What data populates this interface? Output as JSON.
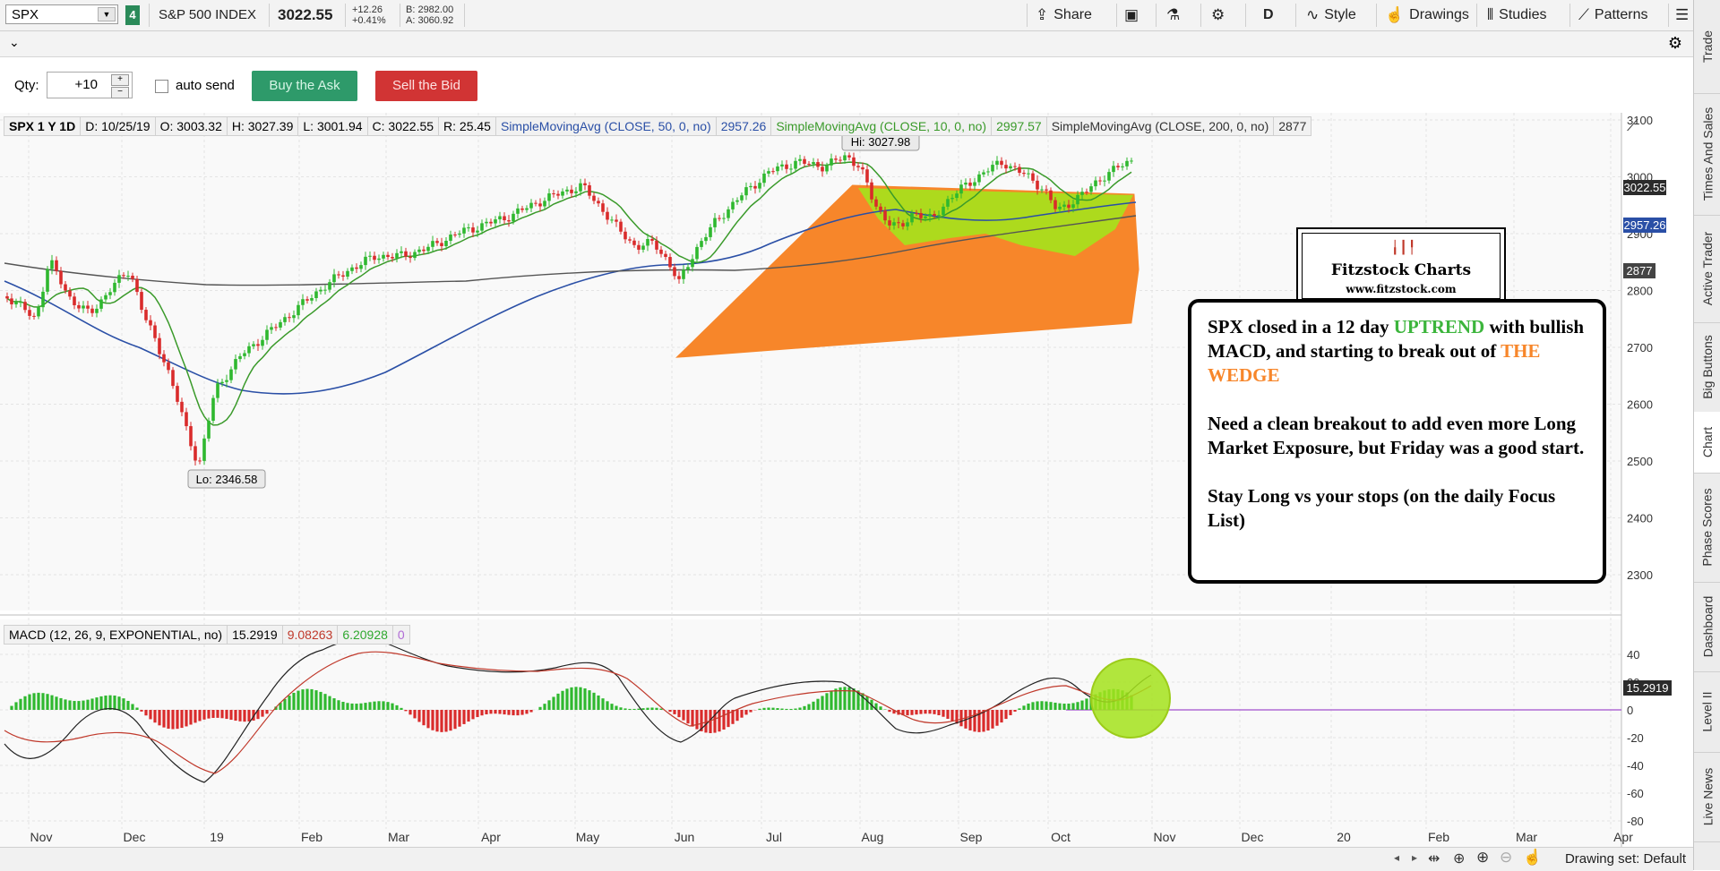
{
  "toolbar": {
    "symbol": "SPX",
    "link_badge": "4",
    "instrument_name": "S&P 500 INDEX",
    "last_price": "3022.55",
    "change_net": "+12.26",
    "change_pct": "+0.41%",
    "bid": "B: 2982.00",
    "ask": "A: 3060.92",
    "share_label": "Share",
    "aggregation": "D",
    "style_label": "Style",
    "drawings_label": "Drawings",
    "studies_label": "Studies",
    "patterns_label": "Patterns"
  },
  "trade": {
    "qty_label": "Qty:",
    "qty_value": "+10",
    "auto_send_label": "auto send",
    "buy_label": "Buy the Ask",
    "sell_label": "Sell the Bid"
  },
  "header": {
    "period": "SPX 1 Y 1D",
    "date": "D: 10/25/19",
    "open": "O: 3003.32",
    "high": "H: 3027.39",
    "low": "L: 3001.94",
    "close": "C: 3022.55",
    "range": "R: 25.45",
    "sma50_label": "SimpleMovingAvg (CLOSE, 50, 0, no)",
    "sma50_value": "2957.26",
    "sma10_label": "SimpleMovingAvg (CLOSE, 10, 0, no)",
    "sma10_value": "2997.57",
    "sma200_label": "SimpleMovingAvg (CLOSE, 200, 0, no)",
    "sma200_value": "2877"
  },
  "annotations": {
    "hi": "Hi: 3027.98",
    "lo": "Lo: 2346.58",
    "logo_title": "Fitzstock Charts",
    "logo_url": "www.fitzstock.com",
    "note_p1_a": "SPX closed in a 12 day ",
    "note_p1_b": "UPTREND",
    "note_p1_c": " with bullish MACD, and starting to break out of ",
    "note_p1_d": "THE WEDGE",
    "note_p2": "Need a clean breakout to add even more Long Market Exposure, but Friday was  a good start.",
    "note_p3": "Stay Long vs your stops (on the daily Focus List)"
  },
  "price_tags": {
    "last": "3022.55",
    "sma50": "2957.26",
    "sma200": "2877"
  },
  "price_axis": [
    "3100",
    "3000",
    "2900",
    "2800",
    "2700",
    "2600",
    "2500",
    "2400",
    "2300"
  ],
  "macd": {
    "label": "MACD (12, 26, 9, EXPONENTIAL, no)",
    "value": "15.2919",
    "avg": "9.08263",
    "diff": "6.20928",
    "zero": "0",
    "tag": "15.2919",
    "axis": [
      "40",
      "20",
      "0",
      "-20",
      "-40",
      "-60",
      "-80"
    ]
  },
  "time_axis": [
    "Nov",
    "Dec",
    "19",
    "Feb",
    "Mar",
    "Apr",
    "May",
    "Jun",
    "Jul",
    "Aug",
    "Sep",
    "Oct",
    "Nov",
    "Dec",
    "20",
    "Feb",
    "Mar",
    "Apr"
  ],
  "side_tabs": [
    "Trade",
    "Times And Sales",
    "Active Trader",
    "Big Buttons",
    "Chart",
    "Phase Scores",
    "Dashboard",
    "Level II",
    "Live News"
  ],
  "status": {
    "drawing_set": "Drawing set: Default"
  },
  "colors": {
    "up": "#2fb82f",
    "down": "#d92b2b",
    "sma10": "#3a9a2a",
    "sma50": "#2a4fa6",
    "sma200": "#555555",
    "wedge": "#f7862a",
    "uptrend_area": "#a4e31c",
    "buy": "#2e9a6a",
    "sell": "#d13434"
  }
}
